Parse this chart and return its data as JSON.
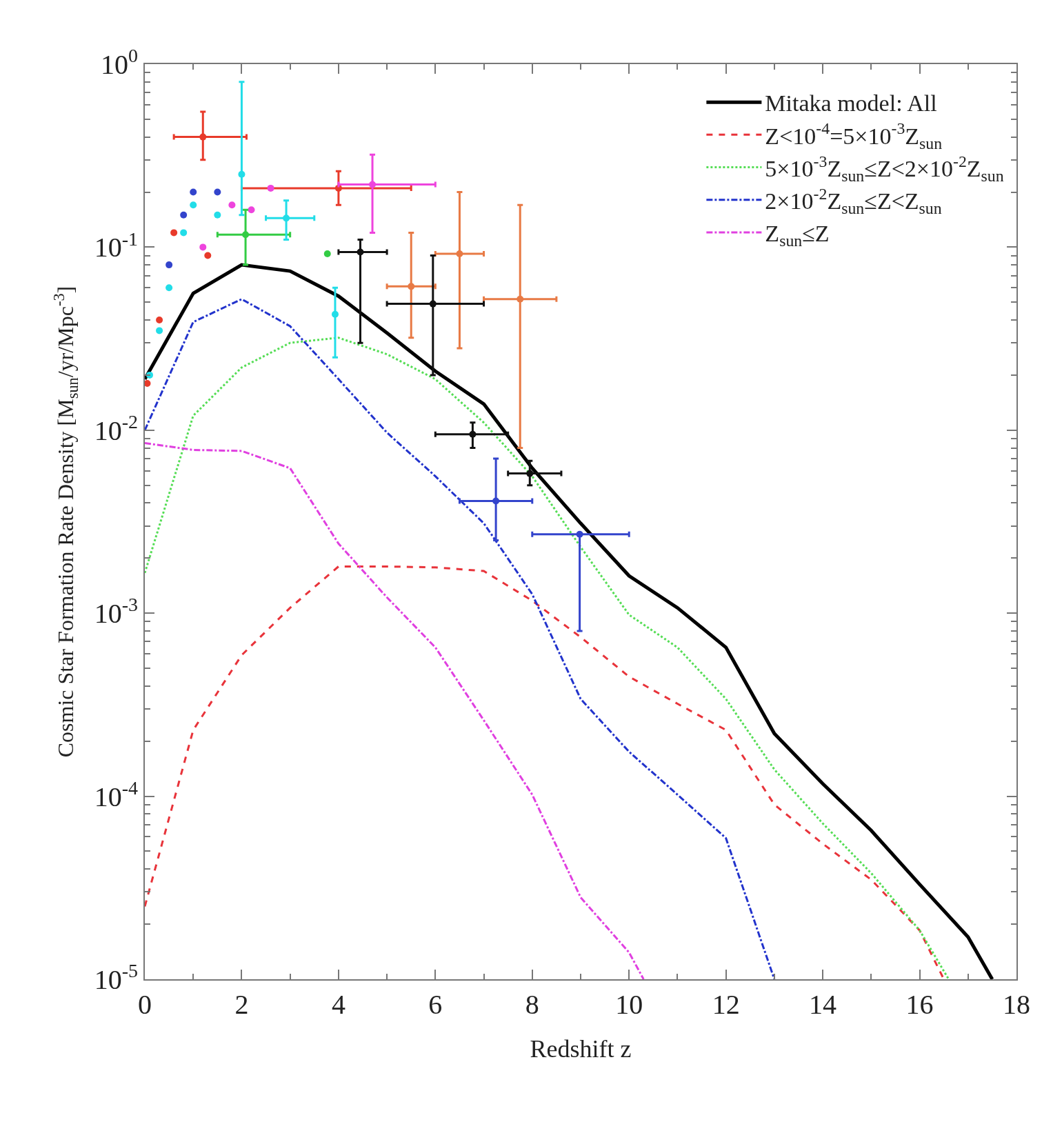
{
  "chart_data": {
    "type": "line",
    "xlabel": "Redshift z",
    "ylabel": "Cosmic Star Formation Rate Density [M$_{sun}$/yr/Mpc$^{-3}$]",
    "log": "y",
    "legend": "top right",
    "marker": "none",
    "xlim": [
      0,
      18
    ],
    "xticks": [
      0,
      2,
      4,
      6,
      8,
      10,
      12,
      14,
      16,
      18
    ],
    "ylim": [
      1e-05,
      1
    ],
    "yticks": [
      {
        "value": 1e-05,
        "label": "10$^{-5}$"
      },
      {
        "value": 0.0001,
        "label": "10$^{-4}$"
      },
      {
        "value": 0.001,
        "label": "10$^{-3}$"
      },
      {
        "value": 0.01,
        "label": "10$^{-2}$"
      },
      {
        "value": 0.1,
        "label": "10$^{-1}$"
      },
      {
        "value": 1,
        "label": "10$^{0}$"
      }
    ],
    "series": [
      {
        "name": "Mitaka model: All",
        "color": "#000000",
        "line_style": "solid",
        "x": [
          0,
          1,
          2,
          3,
          4,
          5,
          6,
          7,
          8,
          9,
          10,
          11,
          12,
          13,
          14,
          15,
          16,
          17,
          17.5
        ],
        "values": [
          0.019,
          0.056,
          0.08,
          0.074,
          0.054,
          0.034,
          0.021,
          0.0139,
          0.0062,
          0.0031,
          0.0016,
          0.00107,
          0.00065,
          0.00022,
          0.000117,
          6.5e-05,
          3.3e-05,
          1.7e-05,
          1e-05
        ]
      },
      {
        "name": "Z<10$^{-4}$=5×10$^{-3}$Z$_{sun}$",
        "color": "#e8333a",
        "line_style": "dashed",
        "x": [
          0,
          1,
          2,
          3,
          4,
          5,
          6,
          7,
          8,
          9,
          10,
          11,
          12,
          13,
          14,
          15,
          16,
          16.5
        ],
        "values": [
          2.5e-05,
          0.00023,
          0.00059,
          0.00107,
          0.0018,
          0.0018,
          0.00178,
          0.0017,
          0.00117,
          0.00074,
          0.00045,
          0.00032,
          0.00023,
          9e-05,
          5.5e-05,
          3.5e-05,
          1.85e-05,
          1e-05
        ]
      },
      {
        "name": "5×10$^{-3}$Z$_{sun}$≤Z<2×10$^{-2}$Z$_{sun}$",
        "color": "#55dd55",
        "line_style": "dotted",
        "x": [
          0,
          1,
          2,
          3,
          4,
          5,
          6,
          7,
          8,
          9,
          10,
          11,
          12,
          13,
          14,
          15,
          16,
          16.6
        ],
        "values": [
          0.00166,
          0.012,
          0.022,
          0.03,
          0.032,
          0.026,
          0.019,
          0.011,
          0.0056,
          0.0023,
          0.00098,
          0.00065,
          0.00034,
          0.00014,
          7.1e-05,
          3.8e-05,
          1.85e-05,
          1e-05
        ]
      },
      {
        "name": "2×10$^{-2}$Z$_{sun}$≤Z<Z$_{sun}$",
        "color": "#2233cc",
        "line_style": "dashdot",
        "x": [
          0,
          1,
          2,
          3,
          4,
          5,
          6,
          7,
          8,
          9,
          10,
          11,
          12,
          13
        ],
        "values": [
          0.01,
          0.039,
          0.052,
          0.037,
          0.019,
          0.0097,
          0.0056,
          0.0031,
          0.00127,
          0.00034,
          0.000175,
          0.000102,
          5.9e-05,
          1e-05
        ]
      },
      {
        "name": "Z$_{sun}$≤Z",
        "color": "#e040e0",
        "line_style": "dashdot",
        "x": [
          0,
          1,
          2,
          3,
          4,
          5,
          6,
          7,
          8,
          9,
          10,
          10.3
        ],
        "values": [
          0.0085,
          0.0078,
          0.0077,
          0.0062,
          0.0024,
          0.00122,
          0.00065,
          0.00026,
          0.000102,
          2.8e-05,
          1.4e-05,
          1e-05
        ]
      },
      {
        "type": "scatter",
        "marker": "circle",
        "color": "#e87a45",
        "x": [
          5.5,
          6.5,
          7.75
        ],
        "values": [
          0.061,
          0.092,
          0.052
        ],
        "errors": [
          [
            0.032,
            0.12
          ],
          [
            0.028,
            0.2
          ],
          [
            0.008,
            0.17
          ]
        ],
        "xerrors": [
          [
            5,
            6
          ],
          [
            6,
            7
          ],
          [
            7,
            8.5
          ]
        ]
      },
      {
        "type": "scatter",
        "marker": "circle",
        "color": "#111111",
        "x": [
          4.45,
          5.95,
          7.95,
          6.77
        ],
        "values": [
          0.094,
          0.049,
          0.0058,
          0.0095
        ],
        "errors": [
          [
            0.03,
            0.11
          ],
          [
            0.02,
            0.09
          ],
          [
            0.005,
            0.0068
          ],
          [
            0.008,
            0.011
          ]
        ],
        "xerrors": [
          [
            4,
            5
          ],
          [
            5,
            7
          ],
          [
            7.5,
            8.6
          ],
          [
            6,
            7.5
          ]
        ]
      },
      {
        "type": "scatter",
        "marker": "circle",
        "color": "#3344cc",
        "x": [
          7.25,
          8.98,
          0.5,
          0.8,
          1.0,
          1.5
        ],
        "values": [
          0.0041,
          0.0027,
          0.08,
          0.15,
          0.2,
          0.2
        ],
        "errors": [
          [
            0.0025,
            0.007
          ],
          [
            0.0008,
            0.0027
          ],
          null,
          null,
          null,
          null
        ],
        "xerrors": [
          [
            6.5,
            8
          ],
          [
            8,
            10
          ],
          null,
          null,
          null,
          null
        ]
      },
      {
        "type": "scatter",
        "marker": "circle",
        "color": "#e83a2a",
        "x": [
          1.2,
          4.0,
          0.05,
          0.3,
          0.6,
          1.3
        ],
        "values": [
          0.4,
          0.21,
          0.018,
          0.04,
          0.12,
          0.09
        ],
        "errors": [
          [
            0.3,
            0.55
          ],
          [
            0.17,
            0.26
          ],
          null,
          null,
          null,
          null
        ],
        "xerrors": [
          [
            0.6,
            2.1
          ],
          [
            2,
            5.5
          ],
          null,
          null,
          null,
          null
        ]
      },
      {
        "type": "scatter",
        "marker": "circle",
        "color": "#ee44dd",
        "x": [
          4.7,
          2.6,
          1.2,
          1.8,
          2.2
        ],
        "values": [
          0.22,
          0.21,
          0.1,
          0.17,
          0.16
        ],
        "errors": [
          [
            0.12,
            0.32
          ],
          null,
          null,
          null,
          null
        ],
        "xerrors": [
          [
            4,
            6
          ],
          null,
          null,
          null,
          null
        ]
      },
      {
        "type": "scatter",
        "marker": "circle",
        "color": "#33cc44",
        "x": [
          3.77,
          2.08
        ],
        "values": [
          0.092,
          0.117
        ],
        "errors": [
          null,
          [
            0.08,
            0.16
          ]
        ],
        "xerrors": [
          null,
          [
            1.5,
            3
          ]
        ]
      },
      {
        "type": "scatter",
        "marker": "circle",
        "color": "#22dde8",
        "x": [
          3.93,
          2.92,
          0.1,
          0.3,
          0.5,
          0.8,
          1.0,
          1.5,
          2.0
        ],
        "values": [
          0.043,
          0.144,
          0.02,
          0.035,
          0.06,
          0.12,
          0.17,
          0.15,
          0.25
        ],
        "errors": [
          [
            0.025,
            0.06
          ],
          [
            0.11,
            0.18
          ],
          null,
          null,
          null,
          null,
          null,
          null,
          [
            0.15,
            0.8
          ]
        ],
        "xerrors": [
          null,
          [
            2.5,
            3.5
          ],
          null,
          null,
          null,
          null,
          null,
          null,
          null
        ]
      }
    ]
  }
}
